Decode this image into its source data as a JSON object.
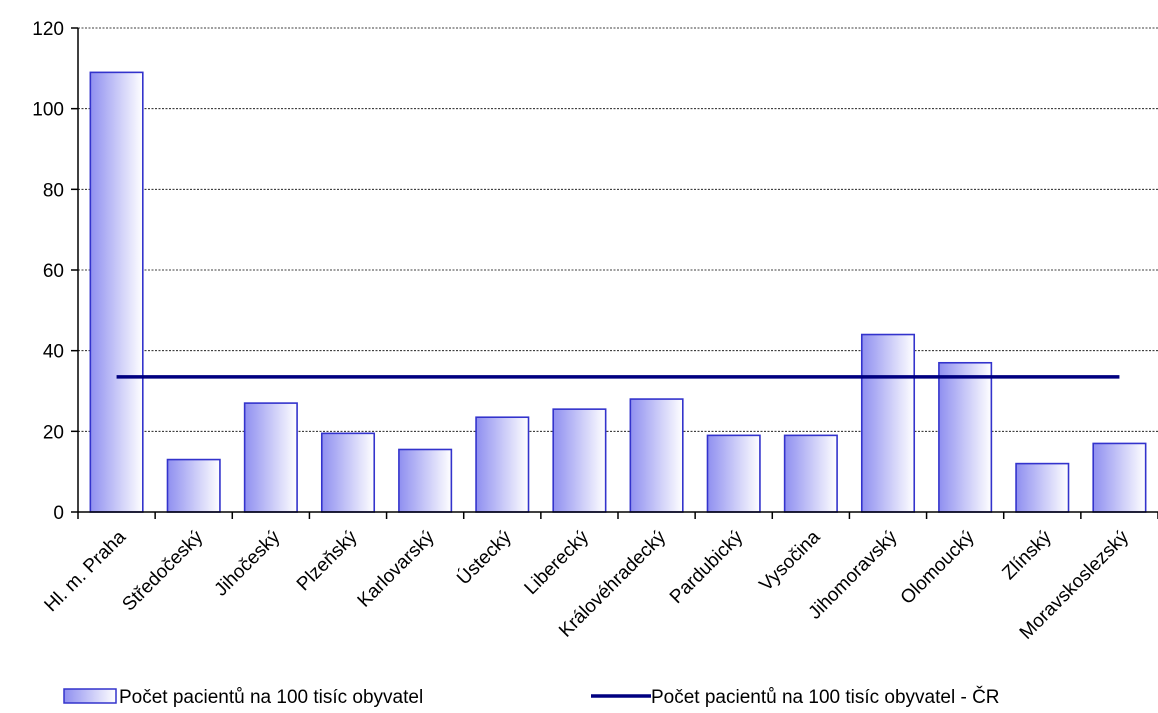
{
  "chart_data": {
    "type": "bar",
    "title": "",
    "xlabel": "",
    "ylabel": "",
    "ylim": [
      0,
      120
    ],
    "yticks": [
      0,
      20,
      40,
      60,
      80,
      100,
      120
    ],
    "grid": true,
    "legend_position": "bottom",
    "categories": [
      "Hl. m. Praha",
      "Středočeský",
      "Jihočeský",
      "Plzeňský",
      "Karlovarský",
      "Ústecký",
      "Liberecký",
      "Královéhradecký",
      "Pardubický",
      "Vysočina",
      "Jihomoravský",
      "Olomoucký",
      "Zlínský",
      "Moravskoslezský"
    ],
    "series": [
      {
        "name": "Počet pacientů na 100 tisíc obyvatel",
        "type": "bar",
        "values": [
          109,
          13,
          27,
          19.5,
          15.5,
          23.5,
          25.5,
          28,
          19,
          19,
          44,
          37,
          12,
          17
        ],
        "color": "#3333cc"
      },
      {
        "name": "Počet pacientů na 100 tisíc obyvatel - ČR",
        "type": "line",
        "values": [
          33.5,
          33.5,
          33.5,
          33.5,
          33.5,
          33.5,
          33.5,
          33.5,
          33.5,
          33.5,
          33.5,
          33.5,
          33.5,
          33.5
        ],
        "color": "#000080"
      }
    ]
  }
}
